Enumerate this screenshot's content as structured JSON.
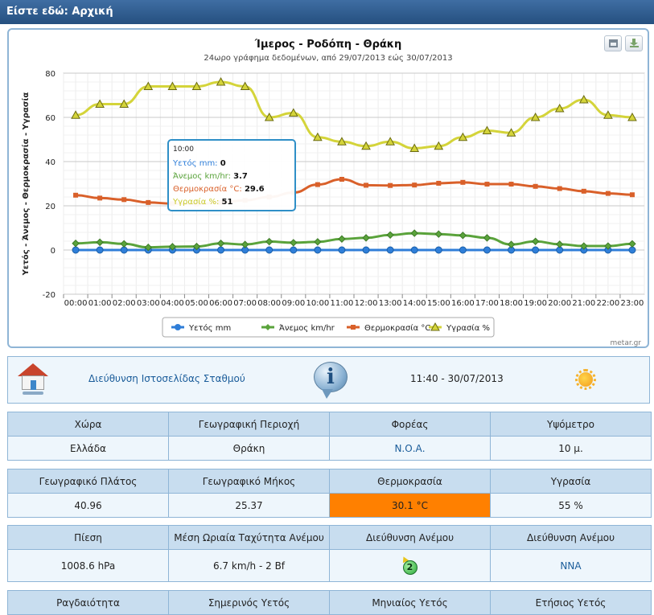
{
  "header": {
    "breadcrumb": "Είστε εδώ: Αρχική"
  },
  "chart_data": {
    "type": "line",
    "title": "Ίμερος - Ροδόπη - Θράκη",
    "subtitle": "24ωρο γράφημα δεδομένων, από 29/07/2013 εώς 30/07/2013",
    "ylabel": "Υετός - Άνεμος - Θερμοκρασία - Υγρασία",
    "xlabel": "",
    "ylim": [
      -20,
      80
    ],
    "yticks": [
      -20,
      0,
      20,
      40,
      60,
      80
    ],
    "categories": [
      "00:00",
      "01:00",
      "02:00",
      "03:00",
      "04:00",
      "05:00",
      "06:00",
      "07:00",
      "08:00",
      "09:00",
      "10:00",
      "11:00",
      "12:00",
      "13:00",
      "14:00",
      "15:00",
      "16:00",
      "17:00",
      "18:00",
      "19:00",
      "20:00",
      "21:00",
      "22:00",
      "23:00"
    ],
    "grid": true,
    "legend_position": "bottom",
    "credit": "metar.gr",
    "series": [
      {
        "name": "Υετός mm",
        "color": "#2f7ed8",
        "marker": "circle",
        "values": [
          0,
          0,
          0,
          0,
          0,
          0,
          0,
          0,
          0,
          0,
          0,
          0,
          0,
          0,
          0,
          0,
          0,
          0,
          0,
          0,
          0,
          0,
          0,
          0
        ]
      },
      {
        "name": "Άνεμος km/hr",
        "color": "#5aa33b",
        "marker": "diamond",
        "values": [
          3,
          3.5,
          2.8,
          1.2,
          1.5,
          1.6,
          3,
          2.5,
          3.8,
          3.3,
          3.7,
          5,
          5.5,
          6.8,
          7.6,
          7.2,
          6.6,
          5.5,
          2.5,
          3.9,
          2.6,
          1.8,
          1.8,
          2.8
        ]
      },
      {
        "name": "Θερμοκρασία °C",
        "color": "#d9602a",
        "marker": "square",
        "values": [
          24.8,
          23.5,
          22.8,
          21.5,
          21,
          20.8,
          21.5,
          22.5,
          24,
          26,
          29.6,
          32,
          29.3,
          29.2,
          29.4,
          30.2,
          30.6,
          29.8,
          29.8,
          28.8,
          27.8,
          26.6,
          25.6,
          25
        ]
      },
      {
        "name": "Υγρασία %",
        "color": "#d4d43a",
        "marker": "triangle",
        "values": [
          61,
          66,
          66,
          74,
          74,
          74,
          76,
          74,
          60,
          62,
          51,
          49,
          47,
          49,
          46,
          47,
          51,
          54,
          53,
          60,
          64,
          68,
          61,
          60
        ]
      }
    ],
    "tooltip": {
      "time": "10:00",
      "rows": [
        {
          "label": "Υετός mm",
          "value": "0",
          "color": "#2f7ed8"
        },
        {
          "label": "Άνεμος km/hr",
          "value": "3.7",
          "color": "#5aa33b"
        },
        {
          "label": "Θερμοκρασία °C",
          "value": "29.6",
          "color": "#d9602a"
        },
        {
          "label": "Υγρασία %",
          "value": "51",
          "color": "#c9c926"
        }
      ]
    }
  },
  "station": {
    "website_link": "Διεύθυνση Ιστοσελίδας Σταθμού",
    "datetime": "11:40 - 30/07/2013",
    "weather_icon": "sun-icon"
  },
  "table1": {
    "headers": [
      "Χώρα",
      "Γεωγραφική Περιοχή",
      "Φορέας",
      "Υψόμετρο"
    ],
    "values": [
      "Ελλάδα",
      "Θράκη",
      "Ν.Ο.Α.",
      "10 μ."
    ]
  },
  "table2": {
    "headers": [
      "Γεωγραφικό Πλάτος",
      "Γεωγραφικό Μήκος",
      "Θερμοκρασία",
      "Υγρασία"
    ],
    "values": [
      "40.96",
      "25.37",
      "30.1 °C",
      "55 %"
    ],
    "temp_color": "#ff8000"
  },
  "table3": {
    "headers": [
      "Πίεση",
      "Μέση Ωριαία Ταχύτητα Ανέμου",
      "Διεύθυνση Ανέμου",
      "Διεύθυνση Ανέμου"
    ],
    "values": [
      "1008.6 hPa",
      "6.7 km/h - 2 Bf",
      "2",
      "ΝΝΑ"
    ]
  },
  "table4": {
    "headers": [
      "Ραγδαιότητα",
      "Σημερινός Υετός",
      "Μηνιαίος Υετός",
      "Ετήσιος Υετός"
    ]
  }
}
